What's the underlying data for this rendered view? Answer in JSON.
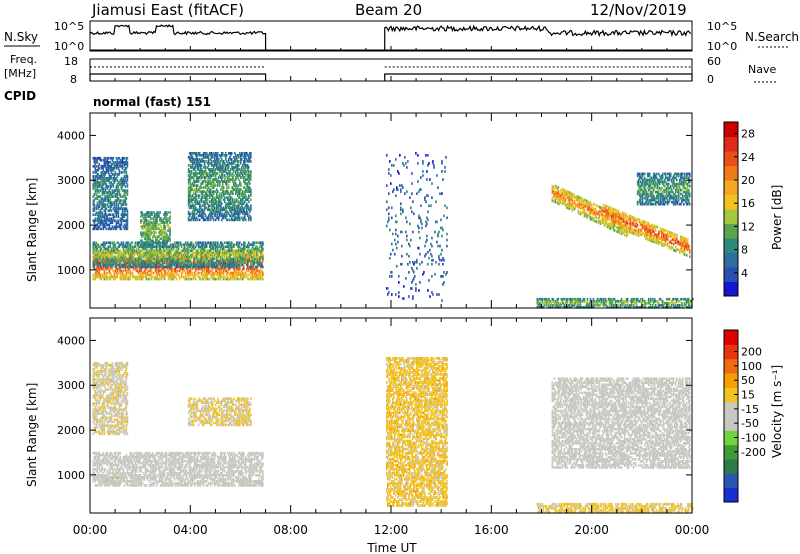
{
  "header": {
    "radar": "Jiamusi East (fitACF)",
    "beam": "Beam 20",
    "date": "12/Nov/2019"
  },
  "summary": {
    "nsky_label": "N.Sky",
    "nsearch_label": "N.Search",
    "freq_label_line1": "Freq.",
    "freq_label_line2": "[MHz]",
    "nave_label": "Nave",
    "cpid_label": "CPID",
    "cpid_value": "normal (fast) 151",
    "noise_ticks": [
      "10^5",
      "10^0"
    ],
    "freq_ticks": [
      "18",
      "8"
    ],
    "nave_ticks": [
      "60",
      "0"
    ],
    "off_interval_hours": [
      7.0,
      11.75
    ]
  },
  "axes": {
    "ylabel": "Slant Range [km]",
    "yticks": [
      "1000",
      "2000",
      "3000",
      "4000"
    ],
    "ytick_values": [
      1000,
      2000,
      3000,
      4000
    ],
    "ylim": [
      150,
      4500
    ],
    "xlabel": "Time UT",
    "xticks": [
      "00:00",
      "04:00",
      "08:00",
      "12:00",
      "16:00",
      "20:00",
      "00:00"
    ],
    "xtick_hours": [
      0,
      4,
      8,
      12,
      16,
      20,
      24
    ],
    "xlim": [
      0,
      24
    ]
  },
  "colorbars": {
    "power": {
      "label": "Power [dB]",
      "ticks": [
        "4",
        "8",
        "12",
        "16",
        "20",
        "24",
        "28"
      ],
      "range": [
        0,
        30
      ],
      "colors": [
        "#1414d2",
        "#2a4fb4",
        "#2e6e9c",
        "#2d8a7a",
        "#5aa54b",
        "#a6c83c",
        "#f2c21e",
        "#f5a623",
        "#f07a1a",
        "#e8501a",
        "#dd2a1a",
        "#cc0000"
      ]
    },
    "velocity": {
      "label": "Velocity [m s⁻¹]",
      "ticks": [
        "200",
        "100",
        "50",
        "15",
        "-15",
        "-50",
        "-100",
        "-200"
      ],
      "colors": [
        "#1830d0",
        "#2b57b0",
        "#2f7a4a",
        "#3e9d3a",
        "#6fd23f",
        "#c8c8c0",
        "#c8c8c0",
        "#f2c21e",
        "#f5a000",
        "#f06a10",
        "#e83410",
        "#dd0000"
      ]
    }
  },
  "chart_data": {
    "type": "heatmap",
    "title": "Jiamusi East (fitACF) Beam 20 12/Nov/2019",
    "xlabel": "Time UT",
    "ylabel": "Slant Range [km]",
    "x_unit": "hours UT",
    "ylim": [
      150,
      4500
    ],
    "panels": [
      {
        "name": "Power [dB]",
        "clusters": [
          {
            "t": [
              0.1,
              6.9
            ],
            "r": [
              780,
              1450
            ],
            "level": 24,
            "note": "dense E/F echo band, orange core"
          },
          {
            "t": [
              0.1,
              6.9
            ],
            "r": [
              1050,
              1600
            ],
            "level": 12
          },
          {
            "t": [
              0.1,
              1.5
            ],
            "r": [
              1900,
              3500
            ],
            "level": 8
          },
          {
            "t": [
              2.0,
              3.2
            ],
            "r": [
              1500,
              2300
            ],
            "level": 12
          },
          {
            "t": [
              3.9,
              6.4
            ],
            "r": [
              2100,
              3600
            ],
            "level": 10
          },
          {
            "t": [
              11.8,
              14.2
            ],
            "r": [
              300,
              3600
            ],
            "level": 6,
            "note": "sparse vertical streaks"
          },
          {
            "t": [
              18.4,
              21.4
            ],
            "r": [
              1600,
              2750
            ],
            "level": 20,
            "note": "descending band"
          },
          {
            "t": [
              20.4,
              23.9
            ],
            "r": [
              1150,
              2300
            ],
            "level": 22,
            "note": "descending band"
          },
          {
            "t": [
              21.8,
              23.9
            ],
            "r": [
              2450,
              3150
            ],
            "level": 10
          },
          {
            "t": [
              17.8,
              24.0
            ],
            "r": [
              150,
              350
            ],
            "level": 12
          }
        ]
      },
      {
        "name": "Velocity [m s⁻¹]",
        "clusters": [
          {
            "t": [
              0.1,
              6.9
            ],
            "r": [
              750,
              1500
            ],
            "velocity": 0,
            "note": "mostly grey (|v|<15)"
          },
          {
            "t": [
              0.5,
              1.2
            ],
            "r": [
              780,
              950
            ],
            "velocity": 20
          },
          {
            "t": [
              3.9,
              6.4
            ],
            "r": [
              2100,
              2700
            ],
            "velocity": -40
          },
          {
            "t": [
              0.1,
              1.5
            ],
            "r": [
              1900,
              3500
            ],
            "velocity": -30
          },
          {
            "t": [
              11.8,
              14.2
            ],
            "r": [
              300,
              3600
            ],
            "velocity": -60
          },
          {
            "t": [
              18.4,
              23.9
            ],
            "r": [
              1150,
              3150
            ],
            "velocity": 0
          },
          {
            "t": [
              17.8,
              24.0
            ],
            "r": [
              150,
              350
            ],
            "velocity": -50
          }
        ]
      }
    ]
  }
}
